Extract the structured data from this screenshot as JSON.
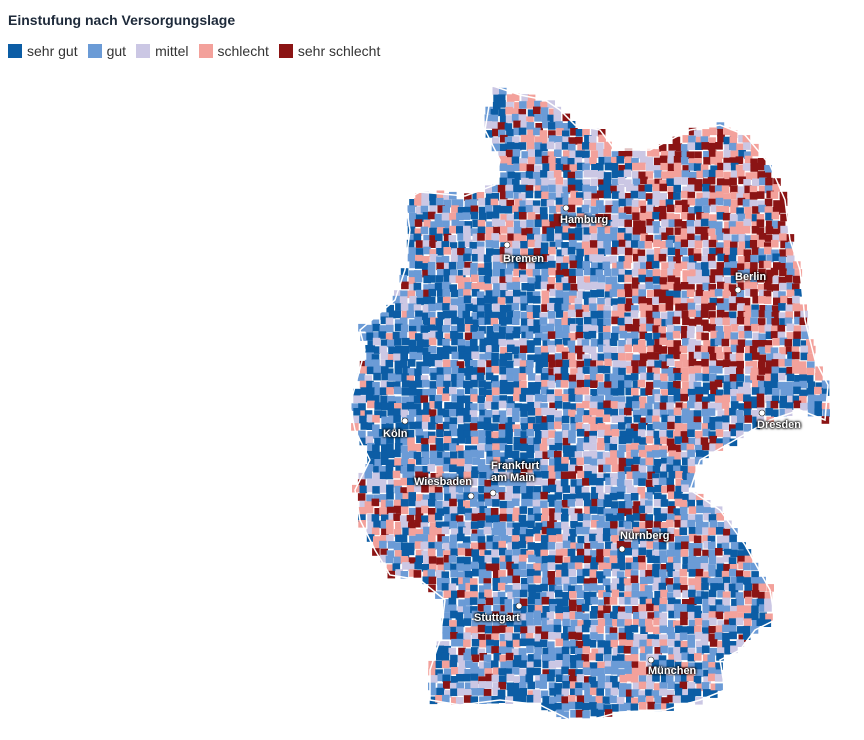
{
  "title": "Einstufung nach Versorgungslage",
  "legend": [
    {
      "label": "sehr gut",
      "color": "#0c5da5"
    },
    {
      "label": "gut",
      "color": "#6b9bd6"
    },
    {
      "label": "mittel",
      "color": "#cbc7e4"
    },
    {
      "label": "schlecht",
      "color": "#f3a19b"
    },
    {
      "label": "sehr schlecht",
      "color": "#8b1414"
    }
  ],
  "cities": [
    {
      "label": "Hamburg"
    },
    {
      "label": "Bremen"
    },
    {
      "label": "Berlin"
    },
    {
      "label": "Dresden"
    },
    {
      "label": "Köln"
    },
    {
      "label": "Wiesbaden"
    },
    {
      "label": "Frankfurt am Main"
    },
    {
      "label": "Nürnberg"
    },
    {
      "label": "Stuttgart"
    },
    {
      "label": "München"
    }
  ]
}
